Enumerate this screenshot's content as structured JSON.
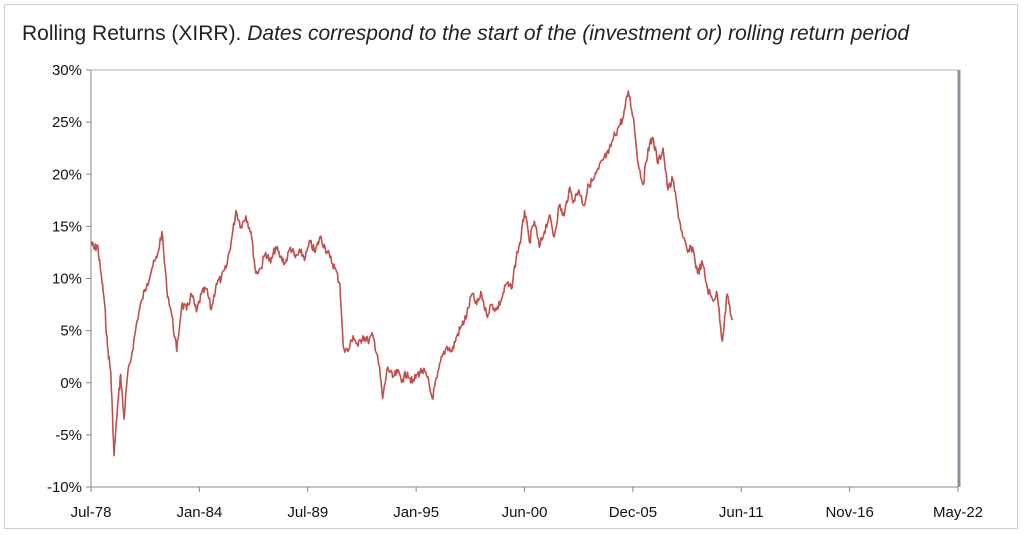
{
  "chart_data": {
    "type": "line",
    "title_plain": "Rolling Returns (XIRR).",
    "title_italic": "Dates correspond to the start of the (investment or) rolling return period",
    "xlabel": "",
    "ylabel": "",
    "x_ticks": [
      "Jul-78",
      "Jan-84",
      "Jul-89",
      "Jan-95",
      "Jun-00",
      "Dec-05",
      "Jun-11",
      "Nov-16",
      "May-22"
    ],
    "y_ticks": [
      "30%",
      "25%",
      "20%",
      "15%",
      "10%",
      "5%",
      "0%",
      "-5%",
      "-10%"
    ],
    "xlim": [
      "1978-07",
      "2022-05"
    ],
    "ylim": [
      -10,
      30
    ],
    "grid": false,
    "legend": "none",
    "series": [
      {
        "color": "#c0504d",
        "points": [
          [
            "1978-07",
            13.5
          ],
          [
            "1978-09",
            12.8
          ],
          [
            "1978-11",
            13.2
          ],
          [
            "1979-01",
            10.5
          ],
          [
            "1979-03",
            8.0
          ],
          [
            "1979-05",
            3.5
          ],
          [
            "1979-07",
            1.0
          ],
          [
            "1979-09",
            -7.0
          ],
          [
            "1979-11",
            -2.5
          ],
          [
            "1980-01",
            0.8
          ],
          [
            "1980-03",
            -3.5
          ],
          [
            "1980-05",
            0.5
          ],
          [
            "1980-08",
            3.0
          ],
          [
            "1980-11",
            6.0
          ],
          [
            "1981-02",
            8.0
          ],
          [
            "1981-05",
            9.5
          ],
          [
            "1981-08",
            11.0
          ],
          [
            "1981-11",
            12.0
          ],
          [
            "1982-02",
            14.5
          ],
          [
            "1982-05",
            9.0
          ],
          [
            "1982-08",
            6.5
          ],
          [
            "1982-11",
            3.0
          ],
          [
            "1983-02",
            7.5
          ],
          [
            "1983-05",
            7.0
          ],
          [
            "1983-08",
            8.5
          ],
          [
            "1983-11",
            6.8
          ],
          [
            "1984-02",
            8.5
          ],
          [
            "1984-05",
            9.0
          ],
          [
            "1984-08",
            7.0
          ],
          [
            "1984-11",
            9.5
          ],
          [
            "1985-02",
            10.0
          ],
          [
            "1985-05",
            11.0
          ],
          [
            "1985-08",
            13.5
          ],
          [
            "1985-11",
            16.5
          ],
          [
            "1986-02",
            15.0
          ],
          [
            "1986-05",
            16.0
          ],
          [
            "1986-08",
            14.5
          ],
          [
            "1986-11",
            10.5
          ],
          [
            "1987-02",
            11.0
          ],
          [
            "1987-05",
            12.5
          ],
          [
            "1987-08",
            11.5
          ],
          [
            "1987-11",
            13.0
          ],
          [
            "1988-02",
            12.0
          ],
          [
            "1988-05",
            11.5
          ],
          [
            "1988-08",
            13.0
          ],
          [
            "1988-11",
            12.0
          ],
          [
            "1989-02",
            12.5
          ],
          [
            "1989-05",
            12.0
          ],
          [
            "1989-08",
            13.5
          ],
          [
            "1989-11",
            12.5
          ],
          [
            "1990-02",
            14.0
          ],
          [
            "1990-05",
            13.0
          ],
          [
            "1990-08",
            12.0
          ],
          [
            "1990-11",
            11.0
          ],
          [
            "1991-02",
            9.5
          ],
          [
            "1991-04",
            3.5
          ],
          [
            "1991-07",
            3.0
          ],
          [
            "1991-10",
            4.5
          ],
          [
            "1992-01",
            3.5
          ],
          [
            "1992-04",
            4.5
          ],
          [
            "1992-07",
            4.0
          ],
          [
            "1992-10",
            4.5
          ],
          [
            "1993-01",
            2.5
          ],
          [
            "1993-04",
            -1.5
          ],
          [
            "1993-07",
            1.5
          ],
          [
            "1993-10",
            0.5
          ],
          [
            "1994-01",
            1.0
          ],
          [
            "1994-04",
            0.3
          ],
          [
            "1994-07",
            1.0
          ],
          [
            "1994-10",
            0.0
          ],
          [
            "1995-01",
            0.8
          ],
          [
            "1995-04",
            1.2
          ],
          [
            "1995-07",
            0.5
          ],
          [
            "1995-10",
            -1.5
          ],
          [
            "1996-01",
            0.5
          ],
          [
            "1996-04",
            2.5
          ],
          [
            "1996-07",
            3.5
          ],
          [
            "1996-10",
            3.0
          ],
          [
            "1997-01",
            4.5
          ],
          [
            "1997-04",
            5.5
          ],
          [
            "1997-07",
            6.5
          ],
          [
            "1997-10",
            8.5
          ],
          [
            "1998-01",
            7.5
          ],
          [
            "1998-04",
            8.5
          ],
          [
            "1998-07",
            6.5
          ],
          [
            "1998-10",
            7.5
          ],
          [
            "1999-01",
            7.0
          ],
          [
            "1999-04",
            8.0
          ],
          [
            "1999-07",
            9.5
          ],
          [
            "1999-10",
            9.0
          ],
          [
            "2000-01",
            12.0
          ],
          [
            "2000-04",
            14.0
          ],
          [
            "2000-06",
            16.5
          ],
          [
            "2000-09",
            13.5
          ],
          [
            "2000-12",
            15.5
          ],
          [
            "2001-03",
            13.0
          ],
          [
            "2001-06",
            14.5
          ],
          [
            "2001-09",
            16.0
          ],
          [
            "2001-12",
            14.0
          ],
          [
            "2002-03",
            17.0
          ],
          [
            "2002-06",
            16.0
          ],
          [
            "2002-09",
            18.5
          ],
          [
            "2002-12",
            17.5
          ],
          [
            "2003-03",
            18.5
          ],
          [
            "2003-06",
            17.0
          ],
          [
            "2003-09",
            19.0
          ],
          [
            "2003-12",
            19.5
          ],
          [
            "2004-03",
            20.5
          ],
          [
            "2004-06",
            21.5
          ],
          [
            "2004-09",
            22.0
          ],
          [
            "2004-12",
            23.5
          ],
          [
            "2005-03",
            24.5
          ],
          [
            "2005-06",
            25.5
          ],
          [
            "2005-09",
            28.0
          ],
          [
            "2005-12",
            25.5
          ],
          [
            "2006-03",
            21.0
          ],
          [
            "2006-06",
            19.0
          ],
          [
            "2006-09",
            22.5
          ],
          [
            "2006-12",
            23.5
          ],
          [
            "2007-03",
            21.0
          ],
          [
            "2007-06",
            22.5
          ],
          [
            "2007-09",
            18.5
          ],
          [
            "2007-12",
            19.5
          ],
          [
            "2008-03",
            16.5
          ],
          [
            "2008-06",
            14.0
          ],
          [
            "2008-09",
            12.5
          ],
          [
            "2008-12",
            13.0
          ],
          [
            "2009-03",
            10.5
          ],
          [
            "2009-06",
            11.5
          ],
          [
            "2009-09",
            9.0
          ],
          [
            "2009-12",
            8.0
          ],
          [
            "2010-03",
            8.5
          ],
          [
            "2010-06",
            4.0
          ],
          [
            "2010-09",
            8.5
          ],
          [
            "2010-12",
            6.0
          ]
        ]
      }
    ]
  }
}
